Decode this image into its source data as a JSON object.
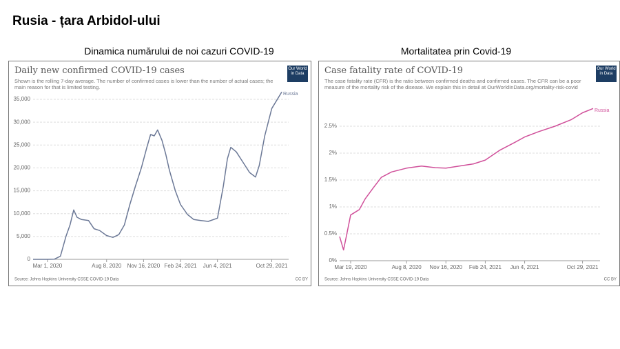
{
  "title": "Rusia - țara Arbidol-ului",
  "chart_data": [
    {
      "type": "line",
      "caption": "Dinamica numărului de noi cazuri COVID-19",
      "title": "Daily new confirmed COVID-19 cases",
      "subtitle": "Shown is the rolling 7-day average. The number of confirmed cases is lower than the number of actual cases; the main reason for that is limited testing.",
      "logo": "Our World in Data",
      "source": "Source: Johns Hopkins University CSSE COVID-19 Data",
      "license": "CC BY",
      "x": [
        "2020-01-22",
        "2020-03-01",
        "2020-03-20",
        "2020-04-05",
        "2020-04-20",
        "2020-05-01",
        "2020-05-11",
        "2020-05-20",
        "2020-06-01",
        "2020-06-20",
        "2020-07-05",
        "2020-07-20",
        "2020-08-08",
        "2020-08-25",
        "2020-09-10",
        "2020-09-25",
        "2020-10-10",
        "2020-10-25",
        "2020-11-10",
        "2020-11-25",
        "2020-12-05",
        "2020-12-15",
        "2020-12-24",
        "2021-01-05",
        "2021-01-15",
        "2021-01-25",
        "2021-02-10",
        "2021-02-24",
        "2021-03-15",
        "2021-04-01",
        "2021-04-20",
        "2021-05-10",
        "2021-06-04",
        "2021-06-20",
        "2021-07-01",
        "2021-07-10",
        "2021-07-25",
        "2021-08-10",
        "2021-08-30",
        "2021-09-15",
        "2021-09-25",
        "2021-10-10",
        "2021-10-29",
        "2021-11-25"
      ],
      "series": [
        {
          "name": "Russia",
          "color": "#6b7896",
          "values": [
            0,
            0,
            40,
            700,
            5000,
            7500,
            10800,
            9200,
            8700,
            8500,
            6700,
            6300,
            5200,
            4800,
            5400,
            7500,
            12000,
            16000,
            20000,
            24500,
            27300,
            27000,
            28300,
            26000,
            23000,
            19500,
            15000,
            12000,
            9800,
            8700,
            8500,
            8300,
            9000,
            16000,
            22000,
            24500,
            23500,
            21500,
            19000,
            18000,
            20500,
            27000,
            33000,
            36600
          ]
        }
      ],
      "xlim": [
        "2020-01-22",
        "2021-11-25"
      ],
      "xticks": [
        {
          "value": "2020-03-01",
          "label": "Mar 1, 2020"
        },
        {
          "value": "2020-08-08",
          "label": "Aug 8, 2020"
        },
        {
          "value": "2020-11-16",
          "label": "Nov 16, 2020"
        },
        {
          "value": "2021-02-24",
          "label": "Feb 24, 2021"
        },
        {
          "value": "2021-06-04",
          "label": "Jun 4, 2021"
        },
        {
          "value": "2021-10-29",
          "label": "Oct 29, 2021"
        }
      ],
      "ylim": [
        0,
        35000
      ],
      "yticks": [
        0,
        {
          "value": 5000,
          "label": "5,000"
        },
        {
          "value": 10000,
          "label": "10,000"
        },
        {
          "value": 15000,
          "label": "15,000"
        },
        {
          "value": 20000,
          "label": "20,000"
        },
        {
          "value": 25000,
          "label": "25,000"
        },
        {
          "value": 30000,
          "label": "30,000"
        },
        {
          "value": 35000,
          "label": "35,000"
        }
      ],
      "grid": true
    },
    {
      "type": "line",
      "caption": "Mortalitatea prin Covid-19",
      "title": "Case fatality rate of COVID-19",
      "subtitle": "The case fatality rate (CFR) is the ratio between confirmed deaths and confirmed cases. The CFR can be a poor measure of the mortality risk of the disease. We explain this in detail at OurWorldInData.org/mortality-risk-covid",
      "logo": "Our World in Data",
      "source": "Source: Johns Hopkins University CSSE COVID-19 Data",
      "license": "CC BY",
      "x": [
        "2020-02-20",
        "2020-03-01",
        "2020-03-08",
        "2020-03-19",
        "2020-03-30",
        "2020-04-10",
        "2020-04-25",
        "2020-05-15",
        "2020-06-05",
        "2020-07-01",
        "2020-08-08",
        "2020-09-15",
        "2020-10-20",
        "2020-11-16",
        "2020-12-20",
        "2021-01-25",
        "2021-02-24",
        "2021-04-01",
        "2021-05-10",
        "2021-06-04",
        "2021-07-10",
        "2021-08-20",
        "2021-09-30",
        "2021-10-29",
        "2021-11-25"
      ],
      "series": [
        {
          "name": "Russia",
          "color": "#d0509a",
          "values": [
            0.45,
            0.2,
            0.45,
            0.85,
            0.9,
            0.95,
            1.15,
            1.35,
            1.55,
            1.65,
            1.72,
            1.76,
            1.73,
            1.72,
            1.76,
            1.8,
            1.87,
            2.05,
            2.2,
            2.3,
            2.4,
            2.5,
            2.62,
            2.75,
            2.83
          ]
        }
      ],
      "xlim": [
        "2020-02-20",
        "2021-11-25"
      ],
      "xticks": [
        {
          "value": "2020-03-19",
          "label": "Mar 19, 2020"
        },
        {
          "value": "2020-08-08",
          "label": "Aug 8, 2020"
        },
        {
          "value": "2020-11-16",
          "label": "Nov 16, 2020"
        },
        {
          "value": "2021-02-24",
          "label": "Feb 24, 2021"
        },
        {
          "value": "2021-06-04",
          "label": "Jun 4, 2021"
        },
        {
          "value": "2021-10-29",
          "label": "Oct 29, 2021"
        }
      ],
      "ylim": [
        0,
        3
      ],
      "yticks": [
        {
          "value": 0,
          "label": "0%"
        },
        {
          "value": 0.5,
          "label": "0.5%"
        },
        {
          "value": 1,
          "label": "1%"
        },
        {
          "value": 1.5,
          "label": "1.5%"
        },
        {
          "value": 2,
          "label": "2%"
        },
        {
          "value": 2.5,
          "label": "2.5%"
        }
      ],
      "grid": true
    }
  ]
}
